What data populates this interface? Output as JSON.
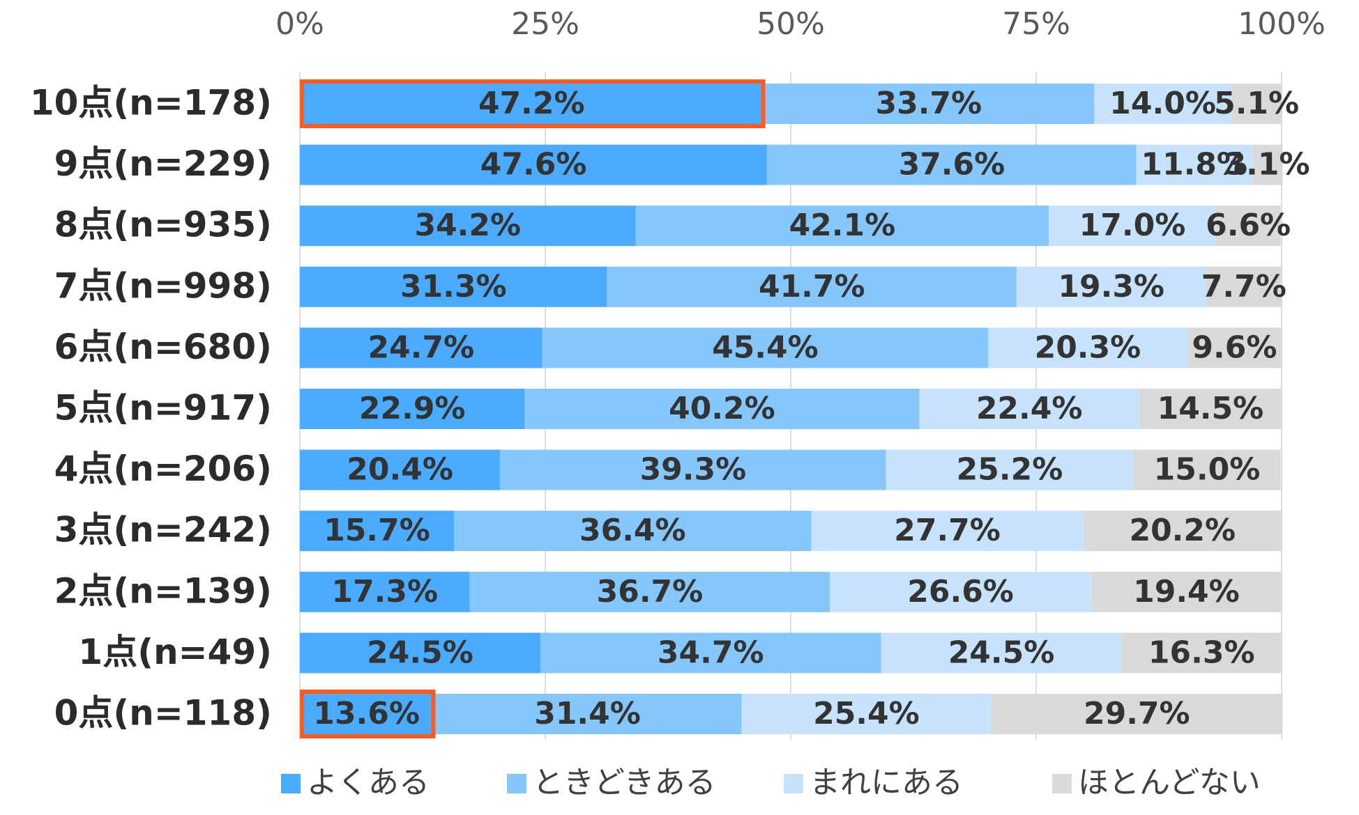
{
  "chart_data": {
    "type": "bar",
    "orientation": "horizontal",
    "stacked": true,
    "percent_scale": true,
    "categories": [
      "10点(n=178)",
      "9点(n=229)",
      "8点(n=935)",
      "7点(n=998)",
      "6点(n=680)",
      "5点(n=917)",
      "4点(n=206)",
      "3点(n=242)",
      "2点(n=139)",
      "1点(n=49)",
      "0点(n=118)"
    ],
    "series": [
      {
        "name": "よくある",
        "color": "#4aabff",
        "values": [
          47.2,
          47.6,
          34.2,
          31.3,
          24.7,
          22.9,
          20.4,
          15.7,
          17.3,
          24.5,
          13.6
        ],
        "labels": [
          "47.2%",
          "47.6%",
          "34.2%",
          "31.3%",
          "24.7%",
          "22.9%",
          "20.4%",
          "15.7%",
          "17.3%",
          "24.5%",
          "13.6%"
        ]
      },
      {
        "name": "ときどきある",
        "color": "#85c6fb",
        "values": [
          33.7,
          37.6,
          42.1,
          41.7,
          45.4,
          40.2,
          39.3,
          36.4,
          36.7,
          34.7,
          31.4
        ],
        "labels": [
          "33.7%",
          "37.6%",
          "42.1%",
          "41.7%",
          "45.4%",
          "40.2%",
          "39.3%",
          "36.4%",
          "36.7%",
          "34.7%",
          "31.4%"
        ]
      },
      {
        "name": "まれにある",
        "color": "#c6e3fb",
        "values": [
          14.0,
          11.8,
          17.0,
          19.3,
          20.3,
          22.4,
          25.2,
          27.7,
          26.6,
          24.5,
          25.4
        ],
        "labels": [
          "14.0%",
          "11.8%",
          "17.0%",
          "19.3%",
          "20.3%",
          "22.4%",
          "25.2%",
          "27.7%",
          "26.6%",
          "24.5%",
          "25.4%"
        ]
      },
      {
        "name": "ほとんどない",
        "color": "#d9d9d9",
        "values": [
          5.1,
          3.1,
          6.6,
          7.7,
          9.6,
          14.5,
          15.0,
          20.2,
          19.4,
          16.3,
          29.7
        ],
        "labels": [
          "5.1%",
          "3.1%",
          "6.6%",
          "7.7%",
          "9.6%",
          "14.5%",
          "15.0%",
          "20.2%",
          "19.4%",
          "16.3%",
          "29.7%"
        ]
      }
    ],
    "xlim": [
      0,
      100
    ],
    "xticks": [
      "0%",
      "25%",
      "50%",
      "75%",
      "100%"
    ],
    "axis_position": "top",
    "grid": true,
    "legend": "bottom",
    "highlights": [
      {
        "category": "10点(n=178)",
        "series": "よくある",
        "color": "#ff5a1f"
      },
      {
        "category": "0点(n=118)",
        "series": "よくある",
        "color": "#ff5a1f"
      }
    ]
  }
}
